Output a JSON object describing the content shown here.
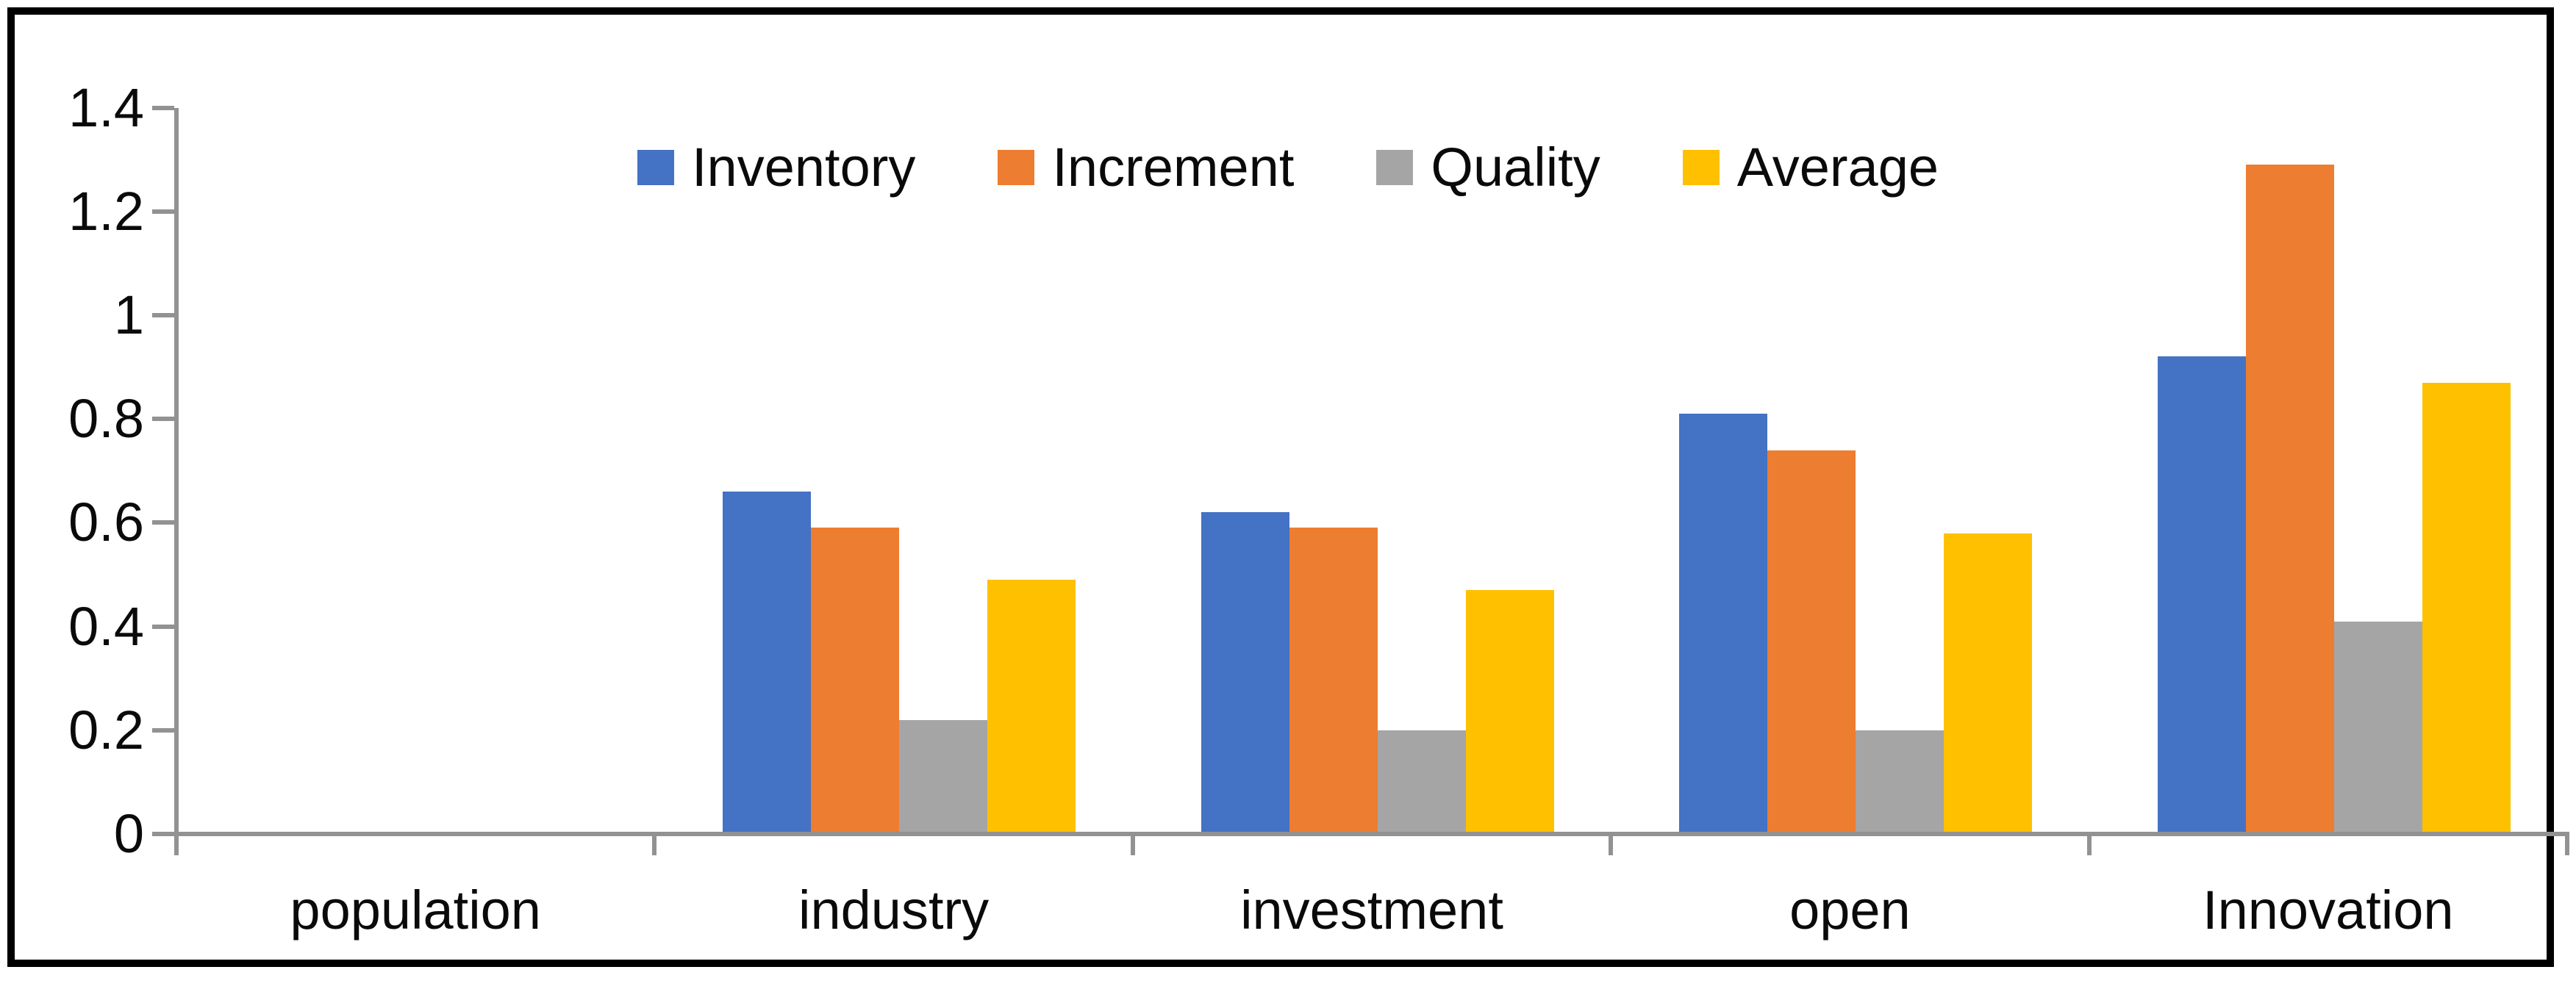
{
  "chart_data": {
    "type": "bar",
    "title": "",
    "categories": [
      "population",
      "industry",
      "investment",
      "open",
      "Innovation"
    ],
    "series": [
      {
        "name": "Inventory",
        "color": "#4472C4",
        "values": [
          0,
          0.66,
          0.62,
          0.81,
          0.92
        ]
      },
      {
        "name": "Increment",
        "color": "#ED7D31",
        "values": [
          0,
          0.59,
          0.59,
          0.74,
          1.29
        ]
      },
      {
        "name": "Quality",
        "color": "#A5A5A5",
        "values": [
          0,
          0.22,
          0.2,
          0.2,
          0.41
        ]
      },
      {
        "name": "Average",
        "color": "#FFC000",
        "values": [
          0,
          0.49,
          0.47,
          0.58,
          0.87
        ]
      }
    ],
    "y_axis": {
      "min": 0,
      "max": 1.4,
      "step": 0.2,
      "tick_labels": [
        "0",
        "0.2",
        "0.4",
        "0.6",
        "0.8",
        "1",
        "1.2",
        "1.4"
      ]
    },
    "xlabel": "",
    "ylabel": "",
    "legend_position": "top-center",
    "grid": false,
    "colors": {
      "axis": "#929292",
      "text": "#0a0a0a",
      "frame_border": "#000000",
      "background": "#FFFFFF"
    }
  }
}
